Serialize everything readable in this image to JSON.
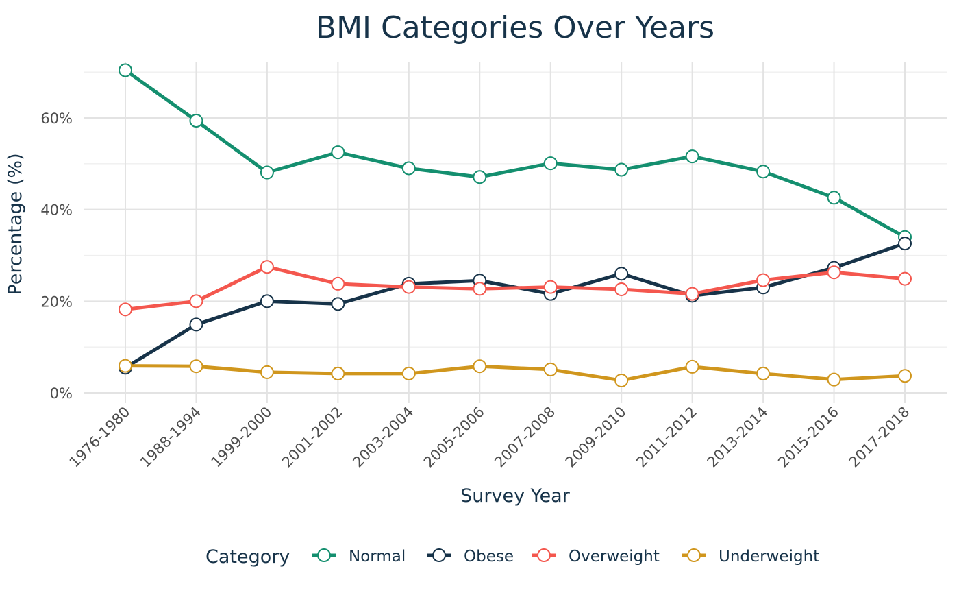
{
  "chart_data": {
    "type": "line",
    "title": "BMI Categories Over Years",
    "xlabel": "Survey Year",
    "ylabel": "Percentage (%)",
    "categories": [
      "1976-1980",
      "1988-1994",
      "1999-2000",
      "2001-2002",
      "2003-2004",
      "2005-2006",
      "2007-2008",
      "2009-2010",
      "2011-2012",
      "2013-2014",
      "2015-2016",
      "2017-2018"
    ],
    "ylim": [
      0,
      70.5
    ],
    "yticks": [
      0,
      20,
      40,
      60
    ],
    "ytick_labels": [
      "0%",
      "20%",
      "40%",
      "60%"
    ],
    "grid": true,
    "legend": {
      "title": "Category",
      "position": "bottom"
    },
    "series": [
      {
        "name": "Normal",
        "color": "#148f6f",
        "values": [
          70.4,
          59.4,
          48.1,
          52.5,
          49.0,
          47.1,
          50.1,
          48.7,
          51.6,
          48.3,
          42.6,
          34.0
        ]
      },
      {
        "name": "Obese",
        "color": "#173349",
        "values": [
          5.5,
          14.9,
          20.0,
          19.4,
          23.8,
          24.5,
          21.6,
          26.0,
          21.2,
          23.0,
          27.3,
          32.6
        ]
      },
      {
        "name": "Overweight",
        "color": "#f4574e",
        "values": [
          18.2,
          20.0,
          27.5,
          23.8,
          23.1,
          22.7,
          23.1,
          22.6,
          21.6,
          24.6,
          26.3,
          24.9
        ]
      },
      {
        "name": "Underweight",
        "color": "#d0961d",
        "values": [
          5.9,
          5.8,
          4.5,
          4.2,
          4.2,
          5.8,
          5.1,
          2.7,
          5.7,
          4.2,
          2.9,
          3.7
        ]
      }
    ]
  }
}
